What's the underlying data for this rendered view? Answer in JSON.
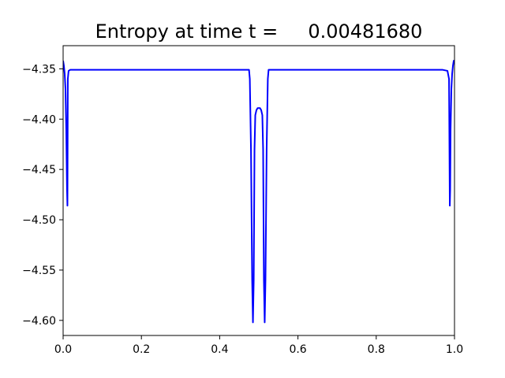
{
  "chart_data": {
    "type": "line",
    "title": "Entropy at time t =     0.00481680",
    "xlabel": "",
    "ylabel": "",
    "xlim": [
      0.0,
      1.0
    ],
    "ylim": [
      -4.615,
      -4.327
    ],
    "grid": false,
    "xticks": [
      0.0,
      0.2,
      0.4,
      0.6,
      0.8,
      1.0
    ],
    "xtick_labels": [
      "0.0",
      "0.2",
      "0.4",
      "0.6",
      "0.8",
      "1.0"
    ],
    "yticks": [
      -4.35,
      -4.4,
      -4.45,
      -4.5,
      -4.55,
      -4.6
    ],
    "ytick_labels": [
      "−4.35",
      "−4.40",
      "−4.45",
      "−4.50",
      "−4.55",
      "−4.60"
    ],
    "series": [
      {
        "color": "#0000ff",
        "x": [
          0.0,
          0.002,
          0.004,
          0.006,
          0.008,
          0.01,
          0.011,
          0.012,
          0.014,
          0.018,
          0.03,
          0.1,
          0.2,
          0.3,
          0.4,
          0.475,
          0.477,
          0.48,
          0.483,
          0.485,
          0.487,
          0.489,
          0.491,
          0.494,
          0.497,
          0.5,
          0.503,
          0.506,
          0.509,
          0.511,
          0.513,
          0.515,
          0.517,
          0.52,
          0.523,
          0.525,
          0.6,
          0.7,
          0.8,
          0.9,
          0.97,
          0.982,
          0.986,
          0.988,
          0.989,
          0.99,
          0.992,
          0.994,
          0.996,
          0.998,
          1.0
        ],
        "y": [
          -4.342,
          -4.347,
          -4.355,
          -4.37,
          -4.41,
          -4.47,
          -4.486,
          -4.36,
          -4.352,
          -4.351,
          -4.351,
          -4.351,
          -4.351,
          -4.351,
          -4.351,
          -4.351,
          -4.36,
          -4.43,
          -4.56,
          -4.602,
          -4.56,
          -4.43,
          -4.396,
          -4.391,
          -4.389,
          -4.389,
          -4.389,
          -4.391,
          -4.396,
          -4.43,
          -4.56,
          -4.602,
          -4.56,
          -4.43,
          -4.36,
          -4.351,
          -4.351,
          -4.351,
          -4.351,
          -4.351,
          -4.351,
          -4.352,
          -4.36,
          -4.486,
          -4.47,
          -4.41,
          -4.37,
          -4.355,
          -4.347,
          -4.342,
          -4.342
        ]
      }
    ]
  }
}
